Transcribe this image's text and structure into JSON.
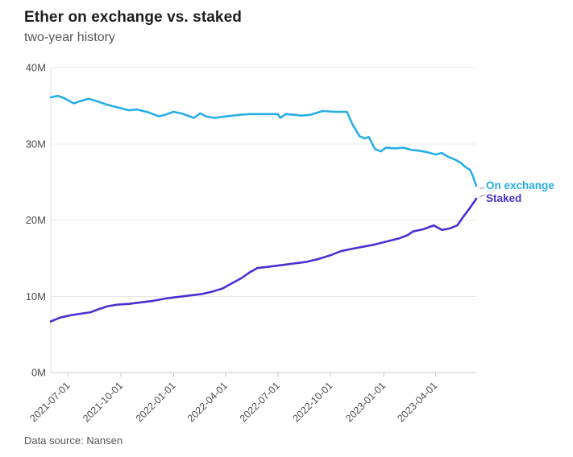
{
  "header": {
    "title": "Ether on exchange vs. staked",
    "subtitle": "two-year history"
  },
  "footer": {
    "source_label": "Data source: Nansen"
  },
  "chart_data": {
    "type": "line",
    "title": "Ether on exchange vs. staked",
    "subtitle": "two-year history",
    "xlabel": "",
    "ylabel": "",
    "y_unit": "M ETH",
    "ylim": [
      0,
      40
    ],
    "grid": "horizontal",
    "legend_position": "right-of-line-ends",
    "x_domain": [
      "2021-06-01",
      "2023-06-11"
    ],
    "x_ticks": [
      "2021-07-01",
      "2021-10-01",
      "2022-01-01",
      "2022-04-01",
      "2022-07-01",
      "2022-10-01",
      "2023-01-01",
      "2023-04-01"
    ],
    "y_ticks": [
      {
        "value": 0,
        "label": "0M"
      },
      {
        "value": 10,
        "label": "10M"
      },
      {
        "value": 20,
        "label": "20M"
      },
      {
        "value": 30,
        "label": "30M"
      },
      {
        "value": 40,
        "label": "40M"
      }
    ],
    "series": [
      {
        "name": "On exchange",
        "color": "#27aee4",
        "points": [
          [
            "2021-06-01",
            36.1
          ],
          [
            "2021-06-13",
            36.3
          ],
          [
            "2021-06-24",
            36.0
          ],
          [
            "2021-07-11",
            35.3
          ],
          [
            "2021-07-22",
            35.6
          ],
          [
            "2021-08-06",
            35.9
          ],
          [
            "2021-08-20",
            35.6
          ],
          [
            "2021-09-08",
            35.1
          ],
          [
            "2021-09-24",
            34.8
          ],
          [
            "2021-10-15",
            34.4
          ],
          [
            "2021-10-29",
            34.5
          ],
          [
            "2021-11-19",
            34.1
          ],
          [
            "2021-12-06",
            33.6
          ],
          [
            "2021-12-17",
            33.8
          ],
          [
            "2021-12-31",
            34.2
          ],
          [
            "2022-01-14",
            34.0
          ],
          [
            "2022-02-05",
            33.4
          ],
          [
            "2022-02-16",
            34.0
          ],
          [
            "2022-02-26",
            33.6
          ],
          [
            "2022-03-12",
            33.4
          ],
          [
            "2022-04-03",
            33.6
          ],
          [
            "2022-04-26",
            33.8
          ],
          [
            "2022-05-12",
            33.9
          ],
          [
            "2022-05-29",
            33.9
          ],
          [
            "2022-06-17",
            33.9
          ],
          [
            "2022-07-01",
            33.9
          ],
          [
            "2022-07-05",
            33.4
          ],
          [
            "2022-07-15",
            33.9
          ],
          [
            "2022-07-29",
            33.8
          ],
          [
            "2022-08-12",
            33.7
          ],
          [
            "2022-08-26",
            33.8
          ],
          [
            "2022-09-17",
            34.3
          ],
          [
            "2022-10-08",
            34.2
          ],
          [
            "2022-10-29",
            34.2
          ],
          [
            "2022-11-08",
            32.5
          ],
          [
            "2022-11-20",
            31.0
          ],
          [
            "2022-11-29",
            30.7
          ],
          [
            "2022-12-06",
            30.9
          ],
          [
            "2022-12-17",
            29.3
          ],
          [
            "2022-12-27",
            29.0
          ],
          [
            "2023-01-05",
            29.5
          ],
          [
            "2023-01-21",
            29.4
          ],
          [
            "2023-02-04",
            29.5
          ],
          [
            "2023-02-18",
            29.2
          ],
          [
            "2023-03-04",
            29.1
          ],
          [
            "2023-03-18",
            28.9
          ],
          [
            "2023-04-01",
            28.6
          ],
          [
            "2023-04-12",
            28.8
          ],
          [
            "2023-04-23",
            28.3
          ],
          [
            "2023-05-06",
            27.9
          ],
          [
            "2023-05-15",
            27.5
          ],
          [
            "2023-05-24",
            26.9
          ],
          [
            "2023-05-31",
            26.6
          ],
          [
            "2023-06-05",
            25.8
          ],
          [
            "2023-06-11",
            24.5
          ]
        ]
      },
      {
        "name": "Staked",
        "color": "#4c2fd1",
        "points": [
          [
            "2021-06-01",
            6.7
          ],
          [
            "2021-06-17",
            7.2
          ],
          [
            "2021-07-05",
            7.5
          ],
          [
            "2021-07-22",
            7.7
          ],
          [
            "2021-08-09",
            7.9
          ],
          [
            "2021-08-23",
            8.3
          ],
          [
            "2021-09-08",
            8.7
          ],
          [
            "2021-09-24",
            8.9
          ],
          [
            "2021-10-15",
            9.0
          ],
          [
            "2021-11-05",
            9.2
          ],
          [
            "2021-11-26",
            9.4
          ],
          [
            "2021-12-17",
            9.7
          ],
          [
            "2022-01-07",
            9.9
          ],
          [
            "2022-01-28",
            10.1
          ],
          [
            "2022-02-19",
            10.3
          ],
          [
            "2022-03-08",
            10.6
          ],
          [
            "2022-03-26",
            11.0
          ],
          [
            "2022-04-12",
            11.7
          ],
          [
            "2022-04-29",
            12.4
          ],
          [
            "2022-05-12",
            13.1
          ],
          [
            "2022-05-26",
            13.7
          ],
          [
            "2022-06-17",
            13.9
          ],
          [
            "2022-07-08",
            14.1
          ],
          [
            "2022-07-29",
            14.3
          ],
          [
            "2022-08-19",
            14.5
          ],
          [
            "2022-09-10",
            14.9
          ],
          [
            "2022-10-01",
            15.4
          ],
          [
            "2022-10-18",
            15.9
          ],
          [
            "2022-11-05",
            16.2
          ],
          [
            "2022-11-26",
            16.5
          ],
          [
            "2022-12-17",
            16.8
          ],
          [
            "2023-01-07",
            17.2
          ],
          [
            "2023-01-28",
            17.6
          ],
          [
            "2023-02-11",
            18.0
          ],
          [
            "2023-02-21",
            18.5
          ],
          [
            "2023-03-11",
            18.8
          ],
          [
            "2023-03-29",
            19.3
          ],
          [
            "2023-04-12",
            18.7
          ],
          [
            "2023-04-26",
            18.9
          ],
          [
            "2023-05-09",
            19.3
          ],
          [
            "2023-05-20",
            20.5
          ],
          [
            "2023-05-31",
            21.6
          ],
          [
            "2023-06-11",
            22.8
          ]
        ]
      }
    ]
  },
  "colors": {
    "on_exchange_line": "#27aee4",
    "staked_line": "#4c2fd1",
    "gridline": "#e8e8e8",
    "axis_text": "#4d4d4d",
    "title_text": "#1d1d1d",
    "leader_mark": "#9aa0a6"
  }
}
